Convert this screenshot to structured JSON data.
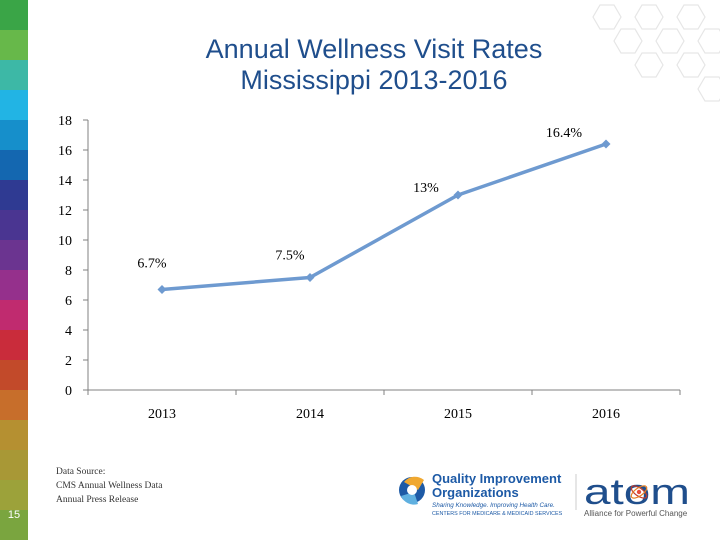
{
  "slide": {
    "title_line1": "Annual Wellness Visit Rates",
    "title_line2": "Mississippi 2013-2016",
    "slide_number": "15",
    "source_lines": [
      "Data Source:",
      "CMS Annual Wellness Data",
      "Annual Press Release"
    ]
  },
  "colors": {
    "title": "#1f4e8c",
    "line": "#6e9ad0",
    "strip": [
      "#3aa547",
      "#67b84a",
      "#3db8a6",
      "#22b4e4",
      "#168fcb",
      "#1467b0",
      "#2f3a92",
      "#4a3591",
      "#6b3490",
      "#95308c",
      "#c02b6f",
      "#c92c3b",
      "#c24a2a",
      "#c76e2b",
      "#b59031",
      "#a89836",
      "#9ca23a",
      "#7aa53f"
    ]
  },
  "logos": {
    "qio_line1": "Quality Improvement",
    "qio_line2": "Organizations",
    "qio_tagline": "Sharing Knowledge. Improving Health Care.",
    "qio_sub": "CENTERS FOR MEDICARE & MEDICAID SERVICES",
    "atom_name": "atom",
    "atom_tagline": "Alliance for Powerful Change"
  },
  "chart_data": {
    "type": "line",
    "categories": [
      "2013",
      "2014",
      "2015",
      "2016"
    ],
    "series": [
      {
        "values": [
          6.7,
          7.5,
          13,
          16.4
        ],
        "labels": [
          "6.7%",
          "7.5%",
          "13%",
          "16.4%"
        ]
      }
    ],
    "ylim": [
      0,
      18
    ],
    "yticks": [
      0,
      2,
      4,
      6,
      8,
      10,
      12,
      14,
      16,
      18
    ],
    "grid": false,
    "legend": "none",
    "title": "Annual Wellness Visit Rates Mississippi 2013-2016"
  }
}
